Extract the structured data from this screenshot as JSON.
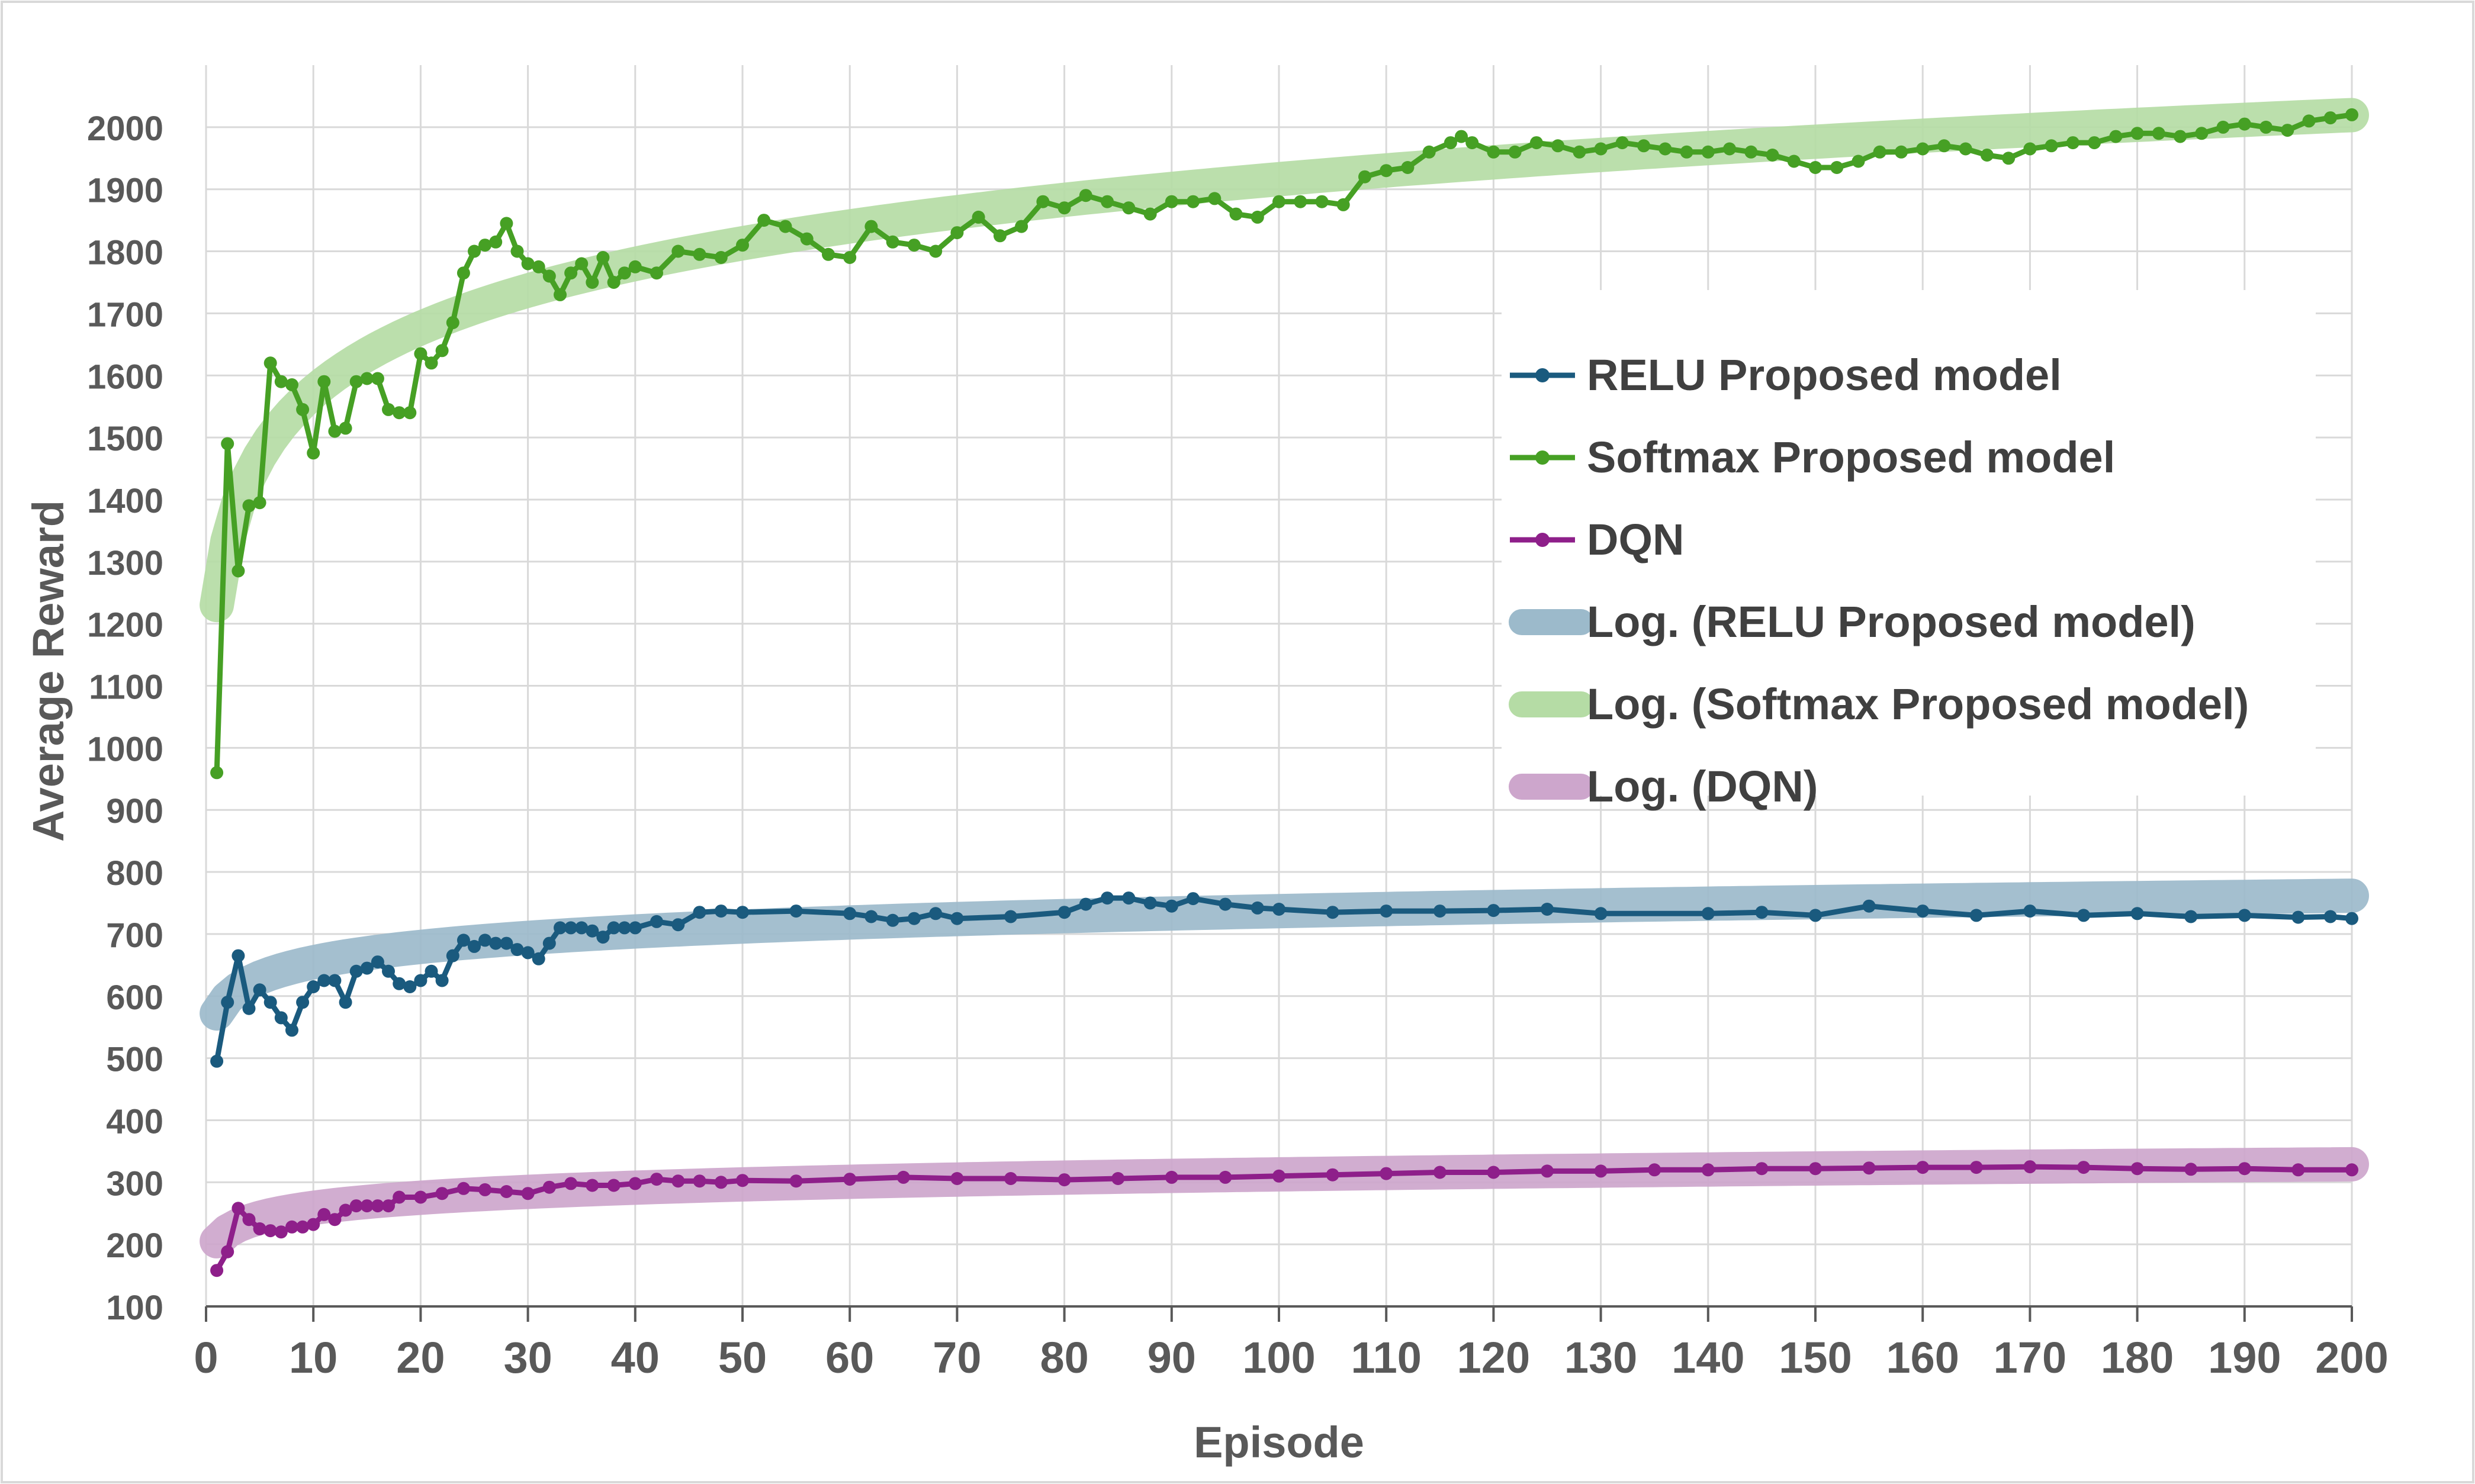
{
  "chart_data": {
    "type": "line",
    "title": "",
    "xlabel": "Episode",
    "ylabel": "Average Reward",
    "xlim": [
      0,
      200
    ],
    "ylim": [
      100,
      2100
    ],
    "x_ticks": [
      0,
      10,
      20,
      30,
      40,
      50,
      60,
      70,
      80,
      90,
      100,
      110,
      120,
      130,
      140,
      150,
      160,
      170,
      180,
      190,
      200
    ],
    "y_ticks": [
      100,
      200,
      300,
      400,
      500,
      600,
      700,
      800,
      900,
      1000,
      1100,
      1200,
      1300,
      1400,
      1500,
      1600,
      1700,
      1800,
      1900,
      2000
    ],
    "grid": true,
    "legend_position": "center-right",
    "series": [
      {
        "name": "RELU Proposed model",
        "color": "#1a5a7e",
        "kind": "line-marker",
        "points": [
          [
            1,
            495
          ],
          [
            2,
            590
          ],
          [
            3,
            665
          ],
          [
            4,
            580
          ],
          [
            5,
            610
          ],
          [
            6,
            590
          ],
          [
            7,
            565
          ],
          [
            8,
            545
          ],
          [
            9,
            590
          ],
          [
            10,
            615
          ],
          [
            11,
            625
          ],
          [
            12,
            625
          ],
          [
            13,
            590
          ],
          [
            14,
            640
          ],
          [
            15,
            645
          ],
          [
            16,
            655
          ],
          [
            17,
            640
          ],
          [
            18,
            620
          ],
          [
            19,
            615
          ],
          [
            20,
            625
          ],
          [
            21,
            640
          ],
          [
            22,
            625
          ],
          [
            23,
            665
          ],
          [
            24,
            690
          ],
          [
            25,
            680
          ],
          [
            26,
            690
          ],
          [
            27,
            685
          ],
          [
            28,
            685
          ],
          [
            29,
            675
          ],
          [
            30,
            670
          ],
          [
            31,
            660
          ],
          [
            32,
            685
          ],
          [
            33,
            710
          ],
          [
            34,
            710
          ],
          [
            35,
            710
          ],
          [
            36,
            705
          ],
          [
            37,
            695
          ],
          [
            38,
            710
          ],
          [
            39,
            710
          ],
          [
            40,
            710
          ],
          [
            42,
            720
          ],
          [
            44,
            715
          ],
          [
            46,
            735
          ],
          [
            48,
            737
          ],
          [
            50,
            735
          ],
          [
            55,
            737
          ],
          [
            60,
            733
          ],
          [
            62,
            728
          ],
          [
            64,
            722
          ],
          [
            66,
            725
          ],
          [
            68,
            733
          ],
          [
            70,
            725
          ],
          [
            75,
            728
          ],
          [
            80,
            735
          ],
          [
            82,
            748
          ],
          [
            84,
            758
          ],
          [
            86,
            758
          ],
          [
            88,
            750
          ],
          [
            90,
            745
          ],
          [
            92,
            757
          ],
          [
            95,
            748
          ],
          [
            98,
            742
          ],
          [
            100,
            740
          ],
          [
            105,
            735
          ],
          [
            110,
            737
          ],
          [
            115,
            737
          ],
          [
            120,
            738
          ],
          [
            125,
            740
          ],
          [
            130,
            733
          ],
          [
            140,
            733
          ],
          [
            145,
            735
          ],
          [
            150,
            730
          ],
          [
            155,
            745
          ],
          [
            160,
            737
          ],
          [
            165,
            730
          ],
          [
            170,
            737
          ],
          [
            175,
            730
          ],
          [
            180,
            733
          ],
          [
            185,
            728
          ],
          [
            190,
            730
          ],
          [
            195,
            727
          ],
          [
            198,
            728
          ],
          [
            200,
            725
          ]
        ]
      },
      {
        "name": "Softmax Proposed model",
        "color": "#46a024",
        "kind": "line-marker",
        "points": [
          [
            1,
            960
          ],
          [
            2,
            1490
          ],
          [
            3,
            1285
          ],
          [
            4,
            1390
          ],
          [
            5,
            1395
          ],
          [
            6,
            1620
          ],
          [
            7,
            1590
          ],
          [
            8,
            1585
          ],
          [
            9,
            1545
          ],
          [
            10,
            1475
          ],
          [
            11,
            1590
          ],
          [
            12,
            1510
          ],
          [
            13,
            1515
          ],
          [
            14,
            1590
          ],
          [
            15,
            1595
          ],
          [
            16,
            1595
          ],
          [
            17,
            1545
          ],
          [
            18,
            1540
          ],
          [
            19,
            1540
          ],
          [
            20,
            1635
          ],
          [
            21,
            1620
          ],
          [
            22,
            1640
          ],
          [
            23,
            1685
          ],
          [
            24,
            1765
          ],
          [
            25,
            1800
          ],
          [
            26,
            1810
          ],
          [
            27,
            1815
          ],
          [
            28,
            1845
          ],
          [
            29,
            1800
          ],
          [
            30,
            1780
          ],
          [
            31,
            1775
          ],
          [
            32,
            1760
          ],
          [
            33,
            1730
          ],
          [
            34,
            1765
          ],
          [
            35,
            1780
          ],
          [
            36,
            1750
          ],
          [
            37,
            1790
          ],
          [
            38,
            1750
          ],
          [
            39,
            1765
          ],
          [
            40,
            1775
          ],
          [
            42,
            1765
          ],
          [
            44,
            1800
          ],
          [
            46,
            1795
          ],
          [
            48,
            1790
          ],
          [
            50,
            1810
          ],
          [
            52,
            1850
          ],
          [
            54,
            1840
          ],
          [
            56,
            1820
          ],
          [
            58,
            1795
          ],
          [
            60,
            1790
          ],
          [
            62,
            1840
          ],
          [
            64,
            1815
          ],
          [
            66,
            1810
          ],
          [
            68,
            1800
          ],
          [
            70,
            1830
          ],
          [
            72,
            1855
          ],
          [
            74,
            1825
          ],
          [
            76,
            1840
          ],
          [
            78,
            1880
          ],
          [
            80,
            1870
          ],
          [
            82,
            1890
          ],
          [
            84,
            1880
          ],
          [
            86,
            1870
          ],
          [
            88,
            1860
          ],
          [
            90,
            1880
          ],
          [
            92,
            1880
          ],
          [
            94,
            1885
          ],
          [
            96,
            1860
          ],
          [
            98,
            1855
          ],
          [
            100,
            1880
          ],
          [
            102,
            1880
          ],
          [
            104,
            1880
          ],
          [
            106,
            1875
          ],
          [
            108,
            1920
          ],
          [
            110,
            1930
          ],
          [
            112,
            1935
          ],
          [
            114,
            1960
          ],
          [
            116,
            1975
          ],
          [
            117,
            1985
          ],
          [
            118,
            1975
          ],
          [
            120,
            1960
          ],
          [
            122,
            1960
          ],
          [
            124,
            1975
          ],
          [
            126,
            1970
          ],
          [
            128,
            1960
          ],
          [
            130,
            1965
          ],
          [
            132,
            1975
          ],
          [
            134,
            1970
          ],
          [
            136,
            1965
          ],
          [
            138,
            1960
          ],
          [
            140,
            1960
          ],
          [
            142,
            1965
          ],
          [
            144,
            1960
          ],
          [
            146,
            1955
          ],
          [
            148,
            1945
          ],
          [
            150,
            1935
          ],
          [
            152,
            1935
          ],
          [
            154,
            1945
          ],
          [
            156,
            1960
          ],
          [
            158,
            1960
          ],
          [
            160,
            1965
          ],
          [
            162,
            1970
          ],
          [
            164,
            1965
          ],
          [
            166,
            1955
          ],
          [
            168,
            1950
          ],
          [
            170,
            1965
          ],
          [
            172,
            1970
          ],
          [
            174,
            1975
          ],
          [
            176,
            1975
          ],
          [
            178,
            1985
          ],
          [
            180,
            1990
          ],
          [
            182,
            1990
          ],
          [
            184,
            1985
          ],
          [
            186,
            1990
          ],
          [
            188,
            2000
          ],
          [
            190,
            2005
          ],
          [
            192,
            2000
          ],
          [
            194,
            1995
          ],
          [
            196,
            2010
          ],
          [
            198,
            2015
          ],
          [
            200,
            2020
          ]
        ]
      },
      {
        "name": "DQN",
        "color": "#8e1f8a",
        "kind": "line-marker",
        "points": [
          [
            1,
            158
          ],
          [
            2,
            188
          ],
          [
            3,
            258
          ],
          [
            4,
            240
          ],
          [
            5,
            225
          ],
          [
            6,
            222
          ],
          [
            7,
            220
          ],
          [
            8,
            228
          ],
          [
            9,
            228
          ],
          [
            10,
            232
          ],
          [
            11,
            248
          ],
          [
            12,
            240
          ],
          [
            13,
            255
          ],
          [
            14,
            262
          ],
          [
            15,
            262
          ],
          [
            16,
            262
          ],
          [
            17,
            262
          ],
          [
            18,
            276
          ],
          [
            20,
            276
          ],
          [
            22,
            282
          ],
          [
            24,
            290
          ],
          [
            26,
            288
          ],
          [
            28,
            285
          ],
          [
            30,
            282
          ],
          [
            32,
            292
          ],
          [
            34,
            298
          ],
          [
            36,
            295
          ],
          [
            38,
            295
          ],
          [
            40,
            298
          ],
          [
            42,
            305
          ],
          [
            44,
            302
          ],
          [
            46,
            302
          ],
          [
            48,
            300
          ],
          [
            50,
            303
          ],
          [
            55,
            302
          ],
          [
            60,
            305
          ],
          [
            65,
            308
          ],
          [
            70,
            306
          ],
          [
            75,
            306
          ],
          [
            80,
            304
          ],
          [
            85,
            306
          ],
          [
            90,
            308
          ],
          [
            95,
            308
          ],
          [
            100,
            310
          ],
          [
            105,
            312
          ],
          [
            110,
            314
          ],
          [
            115,
            316
          ],
          [
            120,
            316
          ],
          [
            125,
            318
          ],
          [
            130,
            318
          ],
          [
            135,
            320
          ],
          [
            140,
            320
          ],
          [
            145,
            322
          ],
          [
            150,
            322
          ],
          [
            155,
            323
          ],
          [
            160,
            324
          ],
          [
            165,
            324
          ],
          [
            170,
            325
          ],
          [
            175,
            324
          ],
          [
            180,
            322
          ],
          [
            185,
            321
          ],
          [
            190,
            322
          ],
          [
            195,
            320
          ],
          [
            200,
            320
          ]
        ]
      },
      {
        "name": "Log. (RELU Proposed model)",
        "color": "#9cbacb",
        "kind": "log-trend",
        "a": 572,
        "b": 35.8
      },
      {
        "name": "Log. (Softmax Proposed model)",
        "color": "#b5dca5",
        "kind": "log-trend",
        "a": 1230,
        "b": 149
      },
      {
        "name": "Log. (DQN)",
        "color": "#cda6cc",
        "kind": "log-trend",
        "a": 205,
        "b": 23.4
      }
    ]
  }
}
